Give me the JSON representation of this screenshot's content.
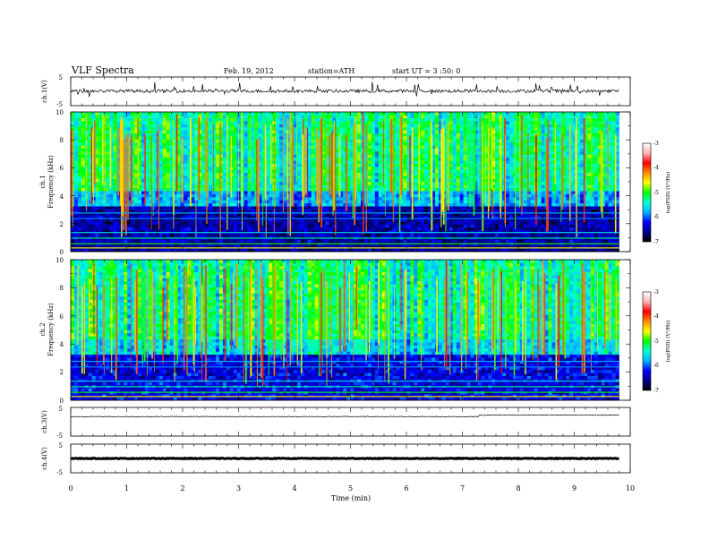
{
  "header": {
    "title": "VLF Spectra",
    "date": "Feb. 19, 2012",
    "station": "station=ATH",
    "start": "start UT = 3 :50: 0"
  },
  "colors": {
    "colormap": [
      "#000000",
      "#00008b",
      "#0000ff",
      "#00b4ff",
      "#00ffd2",
      "#00ff00",
      "#ffff00",
      "#ff8c00",
      "#ff0000",
      "#ffb4b4",
      "#ffffff"
    ],
    "trace": "#000000"
  },
  "chart_data": [
    {
      "type": "line",
      "ylabel": "ch.1(V)",
      "yticks": [
        "5",
        "-5"
      ],
      "ylim": [
        -5,
        5
      ],
      "xlim": [
        0,
        10
      ],
      "description": "noisy trace near 0 V with spikes up to about +3 V"
    },
    {
      "type": "heatmap",
      "ylabel_channel": "ch.1",
      "ylabel": "Frequency (kHz)",
      "yticks": [
        "0",
        "2",
        "4",
        "6",
        "8",
        "10"
      ],
      "ylim": [
        0,
        10
      ],
      "xlim": [
        0,
        10
      ],
      "data_end_min": 9.8,
      "colorbar": {
        "label": "log(PSD) (V²/Hz)",
        "ticks": [
          "-3",
          "-4",
          "-5",
          "-6",
          "-7"
        ],
        "range": [
          -7,
          -3
        ]
      },
      "background_level": -6.3,
      "high_band_level": -5.3
    },
    {
      "type": "heatmap",
      "ylabel_channel": "ch.2",
      "ylabel": "Frequency (kHz)",
      "yticks": [
        "0",
        "2",
        "4",
        "6",
        "8",
        "10"
      ],
      "ylim": [
        0,
        10
      ],
      "xlim": [
        0,
        10
      ],
      "data_end_min": 9.8,
      "colorbar": {
        "label": "log(PSD) (V²/Hz)",
        "ticks": [
          "-3",
          "-4",
          "-5",
          "-6",
          "-7"
        ],
        "range": [
          -7,
          -3
        ]
      },
      "background_level": -6.1,
      "high_band_level": -5.3
    },
    {
      "type": "line",
      "ylabel": "ch.3(V)",
      "yticks": [
        "5",
        "-5"
      ],
      "ylim": [
        -5,
        5
      ],
      "xlim": [
        0,
        10
      ],
      "description": "flat trace near +2 V rising slightly after about 7.3 min"
    },
    {
      "type": "line",
      "ylabel": "ch.4(V)",
      "yticks": [
        "5",
        "-5"
      ],
      "ylim": [
        -5,
        5
      ],
      "xlim": [
        0,
        10
      ],
      "description": "flat thick trace near 0 V"
    }
  ],
  "xaxis": {
    "label": "Time (min)",
    "ticks": [
      "0",
      "1",
      "2",
      "3",
      "4",
      "5",
      "6",
      "7",
      "8",
      "9",
      "10"
    ],
    "range": [
      0,
      10
    ]
  }
}
